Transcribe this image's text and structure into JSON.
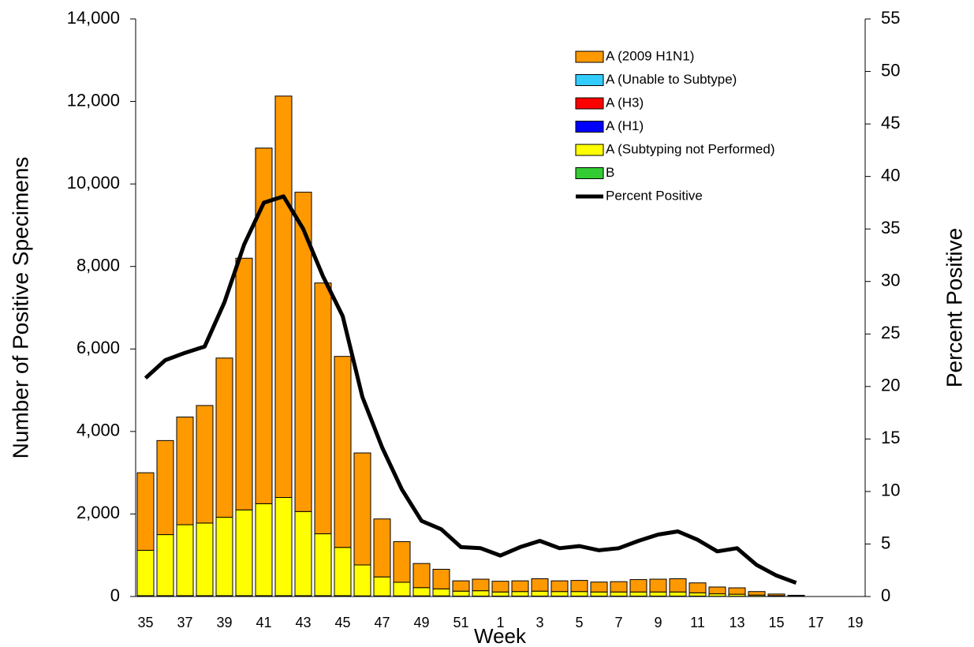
{
  "chart_data": {
    "type": "stacked_bar_line",
    "x_label": "Week",
    "y_label": "Number of Positive Specimens",
    "y2_label": "Percent Positive",
    "categories": [
      "35",
      null,
      "37",
      null,
      "39",
      null,
      "41",
      null,
      "43",
      null,
      "45",
      null,
      "47",
      null,
      "49",
      null,
      "51",
      null,
      "1",
      null,
      "3",
      null,
      "5",
      null,
      "7",
      null,
      "9",
      null,
      "11",
      null,
      "13",
      null,
      "15",
      null,
      "17",
      null,
      "19"
    ],
    "ylim": [
      0,
      14000
    ],
    "yticks": [
      0,
      {
        "value": 2000,
        "label": "2,000"
      },
      {
        "value": 4000,
        "label": "4,000"
      },
      {
        "value": 6000,
        "label": "6,000"
      },
      {
        "value": 8000,
        "label": "8,000"
      },
      {
        "value": 10000,
        "label": "10,000"
      },
      {
        "value": 12000,
        "label": "12,000"
      },
      {
        "value": 14000,
        "label": "14,000"
      }
    ],
    "y2lim": [
      0,
      55
    ],
    "y2ticks": [
      0,
      5,
      10,
      15,
      20,
      25,
      30,
      35,
      40,
      45,
      50,
      55
    ],
    "grid": false,
    "legend": "upper right",
    "series": [
      {
        "name": "A (2009 H1N1)",
        "color": "#ff9900",
        "values": [
          1880,
          2280,
          2610,
          2850,
          3860,
          6100,
          8620,
          9730,
          7740,
          6080,
          4630,
          2715,
          1405,
          985,
          585,
          475,
          250,
          280,
          260,
          260,
          300,
          260,
          270,
          240,
          250,
          300,
          310,
          320,
          240,
          165,
          155,
          85,
          40,
          15,
          0,
          0,
          0
        ]
      },
      {
        "name": "A (Unable to Subtype)",
        "color": "#33ccff",
        "values": [
          0,
          0,
          0,
          0,
          0,
          0,
          0,
          0,
          0,
          0,
          0,
          0,
          0,
          0,
          0,
          0,
          0,
          0,
          0,
          0,
          0,
          0,
          0,
          0,
          0,
          0,
          0,
          0,
          0,
          0,
          0,
          0,
          0,
          0,
          0,
          0,
          0
        ]
      },
      {
        "name": "A (H3)",
        "color": "#ff0000",
        "values": [
          0,
          0,
          0,
          0,
          0,
          0,
          0,
          0,
          0,
          0,
          0,
          0,
          0,
          0,
          0,
          0,
          0,
          0,
          0,
          0,
          0,
          0,
          0,
          0,
          0,
          0,
          0,
          0,
          0,
          0,
          0,
          0,
          0,
          0,
          0,
          0,
          0
        ]
      },
      {
        "name": "A (H1)",
        "color": "#0000ff",
        "values": [
          0,
          0,
          0,
          0,
          0,
          0,
          0,
          0,
          0,
          0,
          0,
          0,
          0,
          0,
          0,
          0,
          0,
          0,
          0,
          0,
          0,
          0,
          0,
          0,
          0,
          0,
          0,
          0,
          0,
          0,
          0,
          0,
          0,
          0,
          0,
          0,
          0
        ]
      },
      {
        "name": "A (Subtyping not Performed)",
        "color": "#ffff00",
        "values": [
          1100,
          1480,
          1720,
          1760,
          1900,
          2080,
          2230,
          2380,
          2040,
          1500,
          1170,
          750,
          460,
          330,
          200,
          170,
          120,
          130,
          100,
          110,
          120,
          110,
          110,
          100,
          100,
          100,
          100,
          100,
          80,
          60,
          50,
          30,
          15,
          10,
          0,
          0,
          0
        ]
      },
      {
        "name": "B",
        "color": "#33cc33",
        "values": [
          20,
          20,
          20,
          20,
          20,
          20,
          20,
          20,
          20,
          20,
          20,
          15,
          15,
          15,
          15,
          15,
          10,
          10,
          10,
          10,
          10,
          10,
          10,
          10,
          10,
          10,
          10,
          10,
          10,
          5,
          5,
          5,
          5,
          5,
          0,
          0,
          0
        ]
      },
      {
        "name": "Percent Positive",
        "color": "#000000",
        "axis": "y2",
        "values": [
          20.8,
          22.5,
          23.2,
          23.8,
          28,
          33.5,
          37.5,
          38.1,
          35,
          30.5,
          26.7,
          19,
          14.2,
          10.2,
          7.2,
          6.4,
          4.7,
          4.6,
          3.9,
          4.7,
          5.3,
          4.6,
          4.8,
          4.4,
          4.6,
          5.3,
          5.9,
          6.2,
          5.4,
          4.3,
          4.6,
          3.0,
          2.0,
          1.3,
          null,
          null,
          null
        ]
      }
    ]
  }
}
